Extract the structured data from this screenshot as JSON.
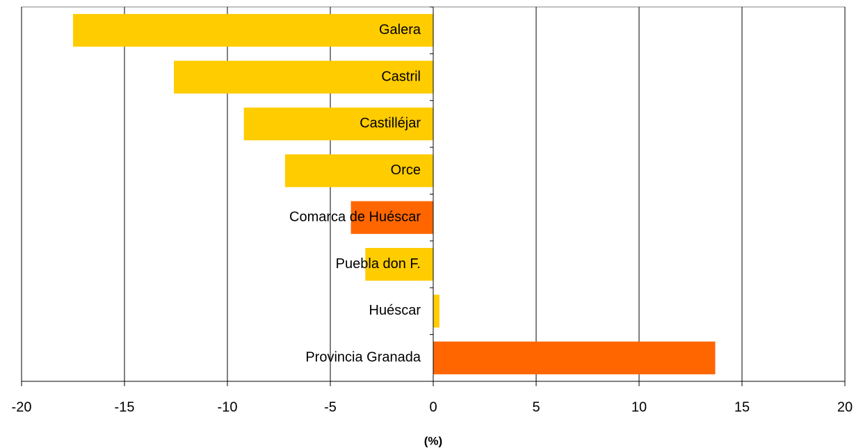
{
  "chart_data": {
    "type": "bar",
    "orientation": "horizontal",
    "categories": [
      "Galera",
      "Castril",
      "Castilléjar",
      "Orce",
      "Comarca de Huéscar",
      "Puebla don F.",
      "Huéscar",
      "Provincia Granada"
    ],
    "values": [
      -17.5,
      -12.6,
      -9.2,
      -7.2,
      -4.0,
      -3.3,
      0.3,
      13.7
    ],
    "colors": [
      "#ffcc00",
      "#ffcc00",
      "#ffcc00",
      "#ffcc00",
      "#ff6600",
      "#ffcc00",
      "#ffcc00",
      "#ff6600"
    ],
    "xlabel": "(%)",
    "xlim": [
      -20,
      20
    ],
    "xticks": [
      -20,
      -15,
      -10,
      -5,
      0,
      5,
      10,
      15,
      20
    ],
    "grid": true
  }
}
